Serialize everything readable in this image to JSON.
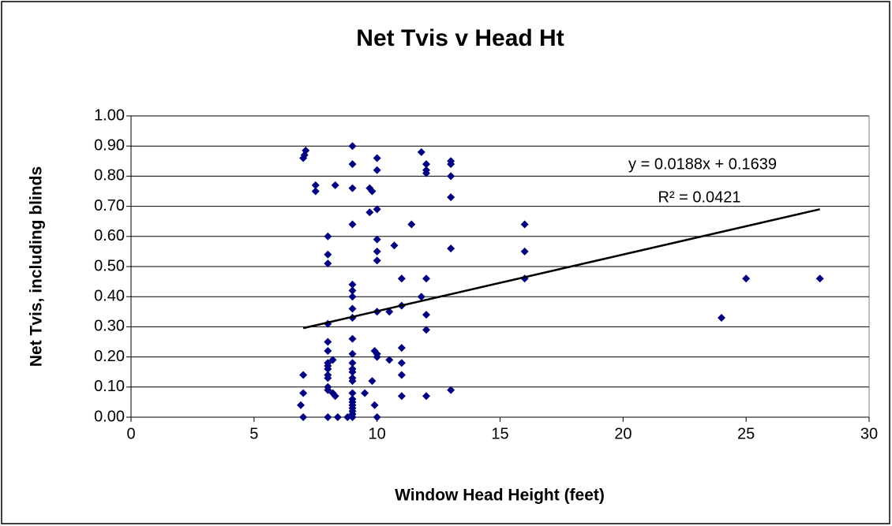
{
  "chart_data": {
    "type": "scatter",
    "title": "Net Tvis v Head Ht",
    "x_label": "Window Head Height (feet)",
    "y_label": "Net Tvis, including blinds",
    "xlim": [
      0,
      30
    ],
    "xticks": [
      0,
      5,
      10,
      15,
      20,
      25,
      30
    ],
    "ylim": [
      0,
      1
    ],
    "yticks": [
      {
        "value": 0,
        "label": "0.00"
      },
      {
        "value": 0.1,
        "label": "0.10"
      },
      {
        "value": 0.2,
        "label": "0.20"
      },
      {
        "value": 0.3,
        "label": "0.30"
      },
      {
        "value": 0.4,
        "label": "0.40"
      },
      {
        "value": 0.5,
        "label": "0.50"
      },
      {
        "value": 0.6,
        "label": "0.60"
      },
      {
        "value": 0.7,
        "label": "0.70"
      },
      {
        "value": 0.8,
        "label": "0.80"
      },
      {
        "value": 0.9,
        "label": "0.90"
      },
      {
        "value": 1,
        "label": "1.00"
      }
    ],
    "grid": true,
    "series": [
      {
        "name": "Net Tvis",
        "color": "#000080",
        "x": [
          7,
          7,
          7,
          7,
          6.9,
          7.1,
          7.05,
          7.5,
          7.5,
          8,
          8,
          8,
          8,
          8,
          8,
          8,
          8,
          8,
          8,
          8,
          8,
          8,
          8,
          8.2,
          8.2,
          8.3,
          8.3,
          8.4,
          9,
          9,
          9,
          9,
          9,
          9,
          9,
          9,
          9,
          9,
          9,
          9,
          9,
          9,
          9,
          9,
          9,
          9,
          9,
          9,
          9,
          9,
          9,
          9,
          8.8,
          9.5,
          9.7,
          9.7,
          9.8,
          9.8,
          9.9,
          9.9,
          10,
          10,
          10,
          10,
          10,
          10,
          10,
          10,
          10,
          10,
          10.5,
          10.5,
          10.7,
          11,
          11,
          11,
          11,
          11,
          11,
          11.4,
          11.8,
          11.8,
          12,
          12,
          12,
          12,
          12,
          12,
          12,
          13,
          13,
          13,
          13,
          13,
          13,
          16,
          16,
          16,
          24,
          25,
          28
        ],
        "values": [
          0.86,
          0.14,
          0.08,
          0,
          0.04,
          0.885,
          0.87,
          0.77,
          0.75,
          0.6,
          0.54,
          0.51,
          0.31,
          0.25,
          0.22,
          0.18,
          0.17,
          0.16,
          0.14,
          0.13,
          0.1,
          0.09,
          0,
          0.19,
          0.08,
          0.77,
          0.07,
          0,
          0.9,
          0.84,
          0.76,
          0.64,
          0.44,
          0.42,
          0.4,
          0.36,
          0.33,
          0.26,
          0.21,
          0.18,
          0.16,
          0.15,
          0.13,
          0.12,
          0.08,
          0.06,
          0.05,
          0.04,
          0.03,
          0.02,
          0.01,
          0,
          0,
          0.08,
          0.76,
          0.68,
          0.75,
          0.12,
          0.22,
          0.04,
          0.86,
          0.82,
          0.69,
          0.59,
          0.55,
          0.52,
          0.35,
          0.21,
          0.2,
          0,
          0.35,
          0.19,
          0.57,
          0.46,
          0.37,
          0.23,
          0.18,
          0.14,
          0.07,
          0.64,
          0.88,
          0.4,
          0.84,
          0.82,
          0.81,
          0.46,
          0.34,
          0.29,
          0.07,
          0.85,
          0.84,
          0.8,
          0.73,
          0.56,
          0.09,
          0.64,
          0.55,
          0.46,
          0.33,
          0.46,
          0.46
        ]
      }
    ],
    "trendline": {
      "slope": 0.0188,
      "intercept": 0.1639,
      "x_start": 7,
      "x_end": 28,
      "color": "#000000",
      "equation": "y = 0.0188x + 0.1639",
      "r_squared": "R² = 0.0421"
    }
  }
}
